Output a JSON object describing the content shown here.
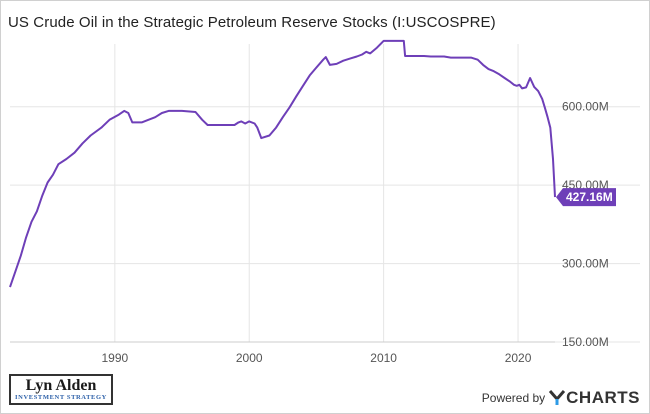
{
  "title": "US Crude Oil in the Strategic Petroleum Reserve Stocks (I:USCOSPRE)",
  "logo": {
    "main": "Lyn Alden",
    "sub": "INVESTMENT STRATEGY"
  },
  "footer": {
    "powered_by": "Powered by",
    "brand_icon": "ycharts-y-icon",
    "brand": "CHARTS"
  },
  "colors": {
    "line": "#6e3fb8",
    "badge": "#6e3fb8",
    "grid": "#e5e5e5",
    "axis_text": "#555555"
  },
  "chart_data": {
    "type": "line",
    "title": "US Crude Oil in the Strategic Petroleum Reserve Stocks (I:USCOSPRE)",
    "xlabel": "",
    "ylabel": "",
    "x_ticks": [
      1990,
      2000,
      2010,
      2020
    ],
    "x_tick_labels": [
      "1990",
      "2000",
      "2010",
      "2020"
    ],
    "y_ticks": [
      150,
      300,
      450,
      600
    ],
    "y_tick_labels": [
      "150.00M",
      "300.00M",
      "450.00M",
      "600.00M"
    ],
    "xlim": [
      1982.2,
      2022.75
    ],
    "ylim": [
      150,
      720
    ],
    "grid": true,
    "legend": "none",
    "current_value": {
      "value": 427.16,
      "label": "427.16M"
    },
    "series": [
      {
        "x": [
          1982.2,
          1982.6,
          1983.0,
          1983.4,
          1983.8,
          1984.2,
          1984.6,
          1985.0,
          1985.4,
          1985.8,
          1986.4,
          1987.0,
          1987.6,
          1988.2,
          1989.0,
          1989.6,
          1990.3,
          1990.7,
          1991.0,
          1991.3,
          1992.0,
          1992.5,
          1993.0,
          1993.5,
          1994.0,
          1994.5,
          1995.0,
          1996.0,
          1996.5,
          1996.9,
          1997.3,
          1998.0,
          1998.9,
          1999.2,
          1999.4,
          1999.7,
          2000.0,
          2000.4,
          2000.6,
          2000.9,
          2001.5,
          2002.0,
          2002.5,
          2003.0,
          2003.5,
          2004.0,
          2004.5,
          2005.0,
          2005.5,
          2005.7,
          2006.0,
          2006.5,
          2007.0,
          2007.5,
          2008.0,
          2008.4,
          2008.7,
          2009.0,
          2009.5,
          2010.0,
          2010.5,
          2011.0,
          2011.5,
          2011.6,
          2012.0,
          2012.5,
          2013.0,
          2013.5,
          2014.0,
          2014.5,
          2015.0,
          2015.5,
          2016.0,
          2016.5,
          2017.0,
          2017.4,
          2017.8,
          2018.2,
          2018.6,
          2019.0,
          2019.4,
          2019.7,
          2019.9,
          2020.1,
          2020.3,
          2020.6,
          2020.9,
          2021.2,
          2021.5,
          2021.8,
          2022.0,
          2022.2,
          2022.4,
          2022.6,
          2022.75
        ],
        "y": [
          255,
          285,
          315,
          350,
          380,
          400,
          430,
          455,
          470,
          490,
          500,
          512,
          530,
          545,
          560,
          575,
          585,
          592,
          588,
          570,
          570,
          575,
          580,
          588,
          592,
          592,
          592,
          590,
          575,
          565,
          565,
          565,
          565,
          570,
          572,
          568,
          572,
          568,
          560,
          540,
          545,
          560,
          580,
          599,
          620,
          640,
          660,
          675,
          690,
          695,
          680,
          682,
          688,
          692,
          696,
          700,
          705,
          702,
          713,
          726,
          726,
          726,
          726,
          697,
          697,
          697,
          697,
          696,
          696,
          696,
          694,
          694,
          694,
          694,
          690,
          680,
          672,
          668,
          662,
          655,
          648,
          642,
          640,
          642,
          635,
          637,
          655,
          638,
          630,
          615,
          598,
          580,
          560,
          500,
          427.16
        ]
      }
    ]
  }
}
